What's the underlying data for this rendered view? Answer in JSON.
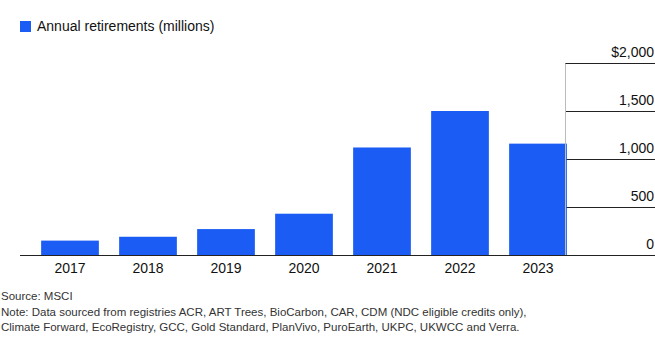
{
  "chart_data": {
    "type": "bar",
    "categories": [
      "2017",
      "2018",
      "2019",
      "2020",
      "2021",
      "2022",
      "2023"
    ],
    "series": [
      {
        "name": "Annual retirements (millions)",
        "color": "#1a5cf4",
        "values": [
          150,
          190,
          270,
          430,
          1120,
          1500,
          1160
        ]
      }
    ],
    "ylim": [
      0,
      2000
    ],
    "yticks": [
      0,
      500,
      {
        "value": 1000,
        "label": "1,000"
      },
      {
        "value": 1500,
        "label": "1,500"
      },
      {
        "value": 2000,
        "label": "$2,000"
      }
    ],
    "grid": true,
    "legend": "top-left",
    "source": "Source: MSCI",
    "note": [
      "Note: Data sourced from registries ACR, ART Trees, BioCarbon, CAR, CDM (NDC eligible credits only),",
      "Climate Forward, EcoRegistry, GCC, Gold Standard, PlanVivo, PuroEarth, UKPC, UKWCC and Verra."
    ]
  }
}
